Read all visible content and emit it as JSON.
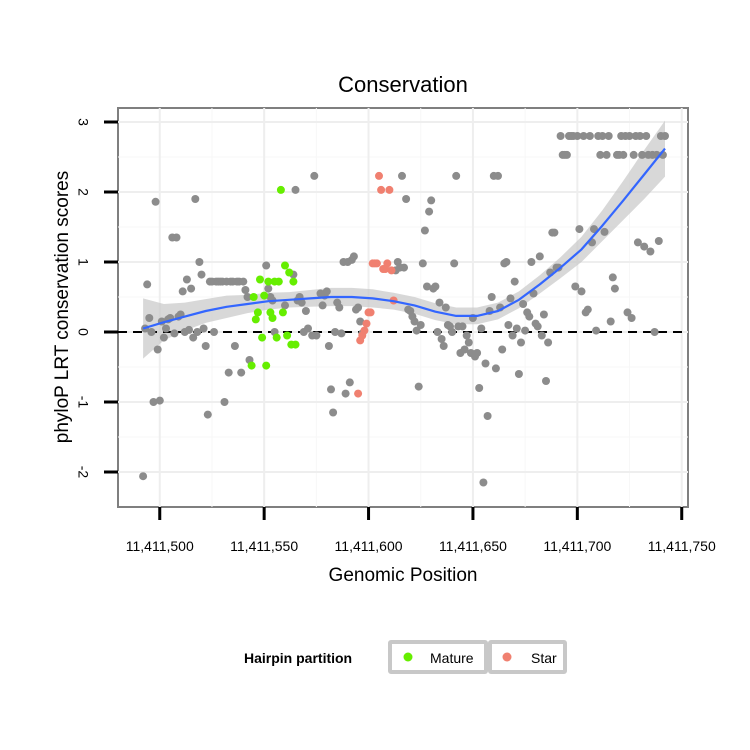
{
  "chart_data": {
    "type": "scatter",
    "title": "Conservation",
    "xlabel": "Genomic Position",
    "ylabel": "phyloP LRT conservation scores",
    "xlim": [
      11411480,
      11411753
    ],
    "ylim": [
      -2.5,
      3.2
    ],
    "x_ticks": [
      11411500,
      11411550,
      11411600,
      11411650,
      11411700,
      11411750
    ],
    "x_tick_labels": [
      "11,411,500",
      "11,411,550",
      "11,411,600",
      "11,411,650",
      "11,411,700",
      "11,411,750"
    ],
    "y_ticks": [
      -2,
      -1,
      0,
      1,
      2,
      3
    ],
    "y_tick_labels": [
      "-2",
      "-1",
      "0",
      "1",
      "2",
      "3"
    ],
    "reference_line": {
      "y": 0,
      "style": "dashed"
    },
    "legend": {
      "title": "Hairpin partition",
      "position": "bottom",
      "entries": [
        {
          "label": "Mature",
          "color": "#66ee00"
        },
        {
          "label": "Star",
          "color": "#f08070"
        }
      ]
    },
    "colors": {
      "other": "#8c8c8c",
      "Mature": "#66ee00",
      "Star": "#f08070",
      "smooth": "#3366ff",
      "band": "#c8c8c8"
    },
    "series": [
      {
        "name": "Other",
        "points": [
          [
            11411492,
            -2.06
          ],
          [
            11411493,
            0.05
          ],
          [
            11411494,
            0.68
          ],
          [
            11411495,
            0.2
          ],
          [
            11411496,
            0.0
          ],
          [
            11411497,
            -1.0
          ],
          [
            11411498,
            1.86
          ],
          [
            11411499,
            -0.25
          ],
          [
            11411500,
            -0.98
          ],
          [
            11411501,
            0.15
          ],
          [
            11411502,
            -0.08
          ],
          [
            11411503,
            0.05
          ],
          [
            11411504,
            0.18
          ],
          [
            11411505,
            0.2
          ],
          [
            11411506,
            1.35
          ],
          [
            11411507,
            -0.02
          ],
          [
            11411508,
            1.35
          ],
          [
            11411509,
            0.22
          ],
          [
            11411510,
            0.25
          ],
          [
            11411511,
            0.58
          ],
          [
            11411512,
            0.0
          ],
          [
            11411513,
            0.75
          ],
          [
            11411514,
            0.03
          ],
          [
            11411515,
            0.62
          ],
          [
            11411516,
            -0.08
          ],
          [
            11411517,
            1.9
          ],
          [
            11411518,
            0.0
          ],
          [
            11411519,
            1.0
          ],
          [
            11411520,
            0.82
          ],
          [
            11411521,
            0.05
          ],
          [
            11411522,
            -0.2
          ],
          [
            11411523,
            -1.18
          ],
          [
            11411524,
            0.72
          ],
          [
            11411525,
            0.72
          ],
          [
            11411526,
            0.0
          ],
          [
            11411527,
            0.72
          ],
          [
            11411528,
            0.72
          ],
          [
            11411529,
            0.72
          ],
          [
            11411530,
            0.72
          ],
          [
            11411531,
            -1.0
          ],
          [
            11411532,
            0.72
          ],
          [
            11411533,
            -0.58
          ],
          [
            11411534,
            0.72
          ],
          [
            11411535,
            0.72
          ],
          [
            11411536,
            -0.2
          ],
          [
            11411537,
            0.72
          ],
          [
            11411538,
            0.72
          ],
          [
            11411539,
            -0.58
          ],
          [
            11411540,
            0.72
          ],
          [
            11411541,
            0.6
          ],
          [
            11411542,
            0.5
          ],
          [
            11411543,
            -0.4
          ],
          [
            11411551,
            0.95
          ],
          [
            11411552,
            0.62
          ],
          [
            11411553,
            0.5
          ],
          [
            11411554,
            0.45
          ],
          [
            11411555,
            0.0
          ],
          [
            11411560,
            0.38
          ],
          [
            11411564,
            0.82
          ],
          [
            11411565,
            2.03
          ],
          [
            11411566,
            0.45
          ],
          [
            11411567,
            0.5
          ],
          [
            11411568,
            0.42
          ],
          [
            11411569,
            0.0
          ],
          [
            11411570,
            0.3
          ],
          [
            11411571,
            0.05
          ],
          [
            11411573,
            -0.05
          ],
          [
            11411574,
            2.23
          ],
          [
            11411575,
            -0.05
          ],
          [
            11411577,
            0.55
          ],
          [
            11411578,
            0.38
          ],
          [
            11411579,
            0.52
          ],
          [
            11411580,
            0.58
          ],
          [
            11411581,
            -0.2
          ],
          [
            11411582,
            -0.82
          ],
          [
            11411583,
            -1.15
          ],
          [
            11411584,
            0.0
          ],
          [
            11411585,
            0.42
          ],
          [
            11411586,
            0.35
          ],
          [
            11411587,
            -0.02
          ],
          [
            11411588,
            1.0
          ],
          [
            11411589,
            -0.88
          ],
          [
            11411590,
            1.0
          ],
          [
            11411591,
            -0.72
          ],
          [
            11411592,
            1.03
          ],
          [
            11411593,
            1.08
          ],
          [
            11411594,
            0.32
          ],
          [
            11411595,
            0.35
          ],
          [
            11411596,
            0.15
          ],
          [
            11411597,
            -0.02
          ],
          [
            11411613,
            0.88
          ],
          [
            11411614,
            1.0
          ],
          [
            11411615,
            0.92
          ],
          [
            11411616,
            2.23
          ],
          [
            11411617,
            0.92
          ],
          [
            11411618,
            1.9
          ],
          [
            11411619,
            0.32
          ],
          [
            11411620,
            0.3
          ],
          [
            11411621,
            0.22
          ],
          [
            11411622,
            0.15
          ],
          [
            11411623,
            0.02
          ],
          [
            11411624,
            -0.78
          ],
          [
            11411625,
            0.1
          ],
          [
            11411626,
            0.98
          ],
          [
            11411627,
            1.45
          ],
          [
            11411628,
            0.65
          ],
          [
            11411629,
            1.72
          ],
          [
            11411630,
            1.88
          ],
          [
            11411631,
            0.62
          ],
          [
            11411632,
            0.65
          ],
          [
            11411633,
            0.0
          ],
          [
            11411634,
            0.42
          ],
          [
            11411635,
            -0.1
          ],
          [
            11411636,
            -0.2
          ],
          [
            11411637,
            0.35
          ],
          [
            11411638,
            0.1
          ],
          [
            11411639,
            0.08
          ],
          [
            11411640,
            0.0
          ],
          [
            11411641,
            0.98
          ],
          [
            11411642,
            2.23
          ],
          [
            11411643,
            0.08
          ],
          [
            11411644,
            -0.3
          ],
          [
            11411645,
            0.08
          ],
          [
            11411646,
            -0.25
          ],
          [
            11411647,
            -0.05
          ],
          [
            11411648,
            -0.15
          ],
          [
            11411649,
            -0.3
          ],
          [
            11411650,
            0.2
          ],
          [
            11411651,
            -0.35
          ],
          [
            11411652,
            -0.3
          ],
          [
            11411653,
            -0.8
          ],
          [
            11411654,
            0.05
          ],
          [
            11411655,
            -2.15
          ],
          [
            11411656,
            -0.45
          ],
          [
            11411657,
            -1.2
          ],
          [
            11411658,
            0.3
          ],
          [
            11411659,
            0.5
          ],
          [
            11411660,
            2.23
          ],
          [
            11411661,
            -0.52
          ],
          [
            11411662,
            2.23
          ],
          [
            11411663,
            0.35
          ],
          [
            11411664,
            -0.25
          ],
          [
            11411665,
            0.98
          ],
          [
            11411666,
            1.0
          ],
          [
            11411667,
            0.1
          ],
          [
            11411668,
            0.48
          ],
          [
            11411669,
            -0.05
          ],
          [
            11411670,
            0.72
          ],
          [
            11411671,
            0.05
          ],
          [
            11411672,
            -0.6
          ],
          [
            11411673,
            -0.15
          ],
          [
            11411674,
            0.4
          ],
          [
            11411675,
            0.02
          ],
          [
            11411676,
            0.28
          ],
          [
            11411677,
            0.22
          ],
          [
            11411678,
            1.0
          ],
          [
            11411679,
            0.55
          ],
          [
            11411680,
            0.12
          ],
          [
            11411681,
            0.08
          ],
          [
            11411682,
            1.08
          ],
          [
            11411683,
            -0.05
          ],
          [
            11411684,
            0.25
          ],
          [
            11411685,
            -0.7
          ],
          [
            11411686,
            -0.15
          ],
          [
            11411687,
            0.85
          ],
          [
            11411688,
            1.42
          ],
          [
            11411689,
            1.42
          ],
          [
            11411690,
            0.92
          ],
          [
            11411691,
            0.92
          ],
          [
            11411692,
            2.8
          ],
          [
            11411693,
            2.53
          ],
          [
            11411694,
            2.53
          ],
          [
            11411695,
            2.53
          ],
          [
            11411696,
            2.8
          ],
          [
            11411697,
            2.8
          ],
          [
            11411698,
            2.8
          ],
          [
            11411699,
            0.65
          ],
          [
            11411700,
            2.8
          ],
          [
            11411701,
            1.47
          ],
          [
            11411702,
            0.58
          ],
          [
            11411703,
            2.8
          ],
          [
            11411704,
            0.28
          ],
          [
            11411705,
            0.32
          ],
          [
            11411706,
            2.8
          ],
          [
            11411707,
            1.28
          ],
          [
            11411708,
            1.47
          ],
          [
            11411709,
            0.02
          ],
          [
            11411710,
            2.8
          ],
          [
            11411711,
            2.53
          ],
          [
            11411712,
            2.8
          ],
          [
            11411713,
            1.43
          ],
          [
            11411714,
            2.53
          ],
          [
            11411715,
            2.8
          ],
          [
            11411716,
            0.15
          ],
          [
            11411717,
            0.78
          ],
          [
            11411718,
            0.62
          ],
          [
            11411719,
            2.53
          ],
          [
            11411720,
            2.53
          ],
          [
            11411721,
            2.8
          ],
          [
            11411722,
            2.53
          ],
          [
            11411723,
            2.8
          ],
          [
            11411724,
            0.28
          ],
          [
            11411725,
            2.8
          ],
          [
            11411726,
            0.2
          ],
          [
            11411727,
            2.53
          ],
          [
            11411728,
            2.8
          ],
          [
            11411729,
            1.28
          ],
          [
            11411730,
            2.8
          ],
          [
            11411731,
            2.53
          ],
          [
            11411732,
            1.22
          ],
          [
            11411733,
            2.8
          ],
          [
            11411734,
            2.53
          ],
          [
            11411735,
            1.15
          ],
          [
            11411736,
            2.53
          ],
          [
            11411737,
            0.0
          ],
          [
            11411738,
            2.53
          ],
          [
            11411739,
            1.3
          ],
          [
            11411740,
            2.8
          ],
          [
            11411741,
            2.53
          ],
          [
            11411742,
            2.8
          ]
        ]
      },
      {
        "name": "Mature",
        "points": [
          [
            11411544,
            -0.48
          ],
          [
            11411545,
            0.5
          ],
          [
            11411546,
            0.18
          ],
          [
            11411547,
            0.28
          ],
          [
            11411548,
            0.75
          ],
          [
            11411549,
            -0.08
          ],
          [
            11411550,
            0.52
          ],
          [
            11411551,
            -0.48
          ],
          [
            11411552,
            0.72
          ],
          [
            11411553,
            0.28
          ],
          [
            11411554,
            0.2
          ],
          [
            11411555,
            0.72
          ],
          [
            11411556,
            -0.08
          ],
          [
            11411557,
            0.72
          ],
          [
            11411558,
            2.03
          ],
          [
            11411559,
            0.28
          ],
          [
            11411560,
            0.95
          ],
          [
            11411561,
            -0.05
          ],
          [
            11411562,
            0.85
          ],
          [
            11411563,
            -0.18
          ],
          [
            11411564,
            0.72
          ],
          [
            11411565,
            -0.18
          ]
        ]
      },
      {
        "name": "Star",
        "points": [
          [
            11411595,
            -0.88
          ],
          [
            11411596,
            -0.12
          ],
          [
            11411597,
            -0.05
          ],
          [
            11411598,
            0.02
          ],
          [
            11411599,
            0.12
          ],
          [
            11411600,
            0.28
          ],
          [
            11411601,
            0.28
          ],
          [
            11411602,
            0.98
          ],
          [
            11411603,
            0.98
          ],
          [
            11411604,
            0.98
          ],
          [
            11411605,
            2.23
          ],
          [
            11411606,
            2.03
          ],
          [
            11411607,
            0.9
          ],
          [
            11411608,
            0.9
          ],
          [
            11411609,
            0.98
          ],
          [
            11411610,
            2.03
          ],
          [
            11411611,
            0.88
          ],
          [
            11411612,
            0.45
          ]
        ]
      }
    ],
    "smooth": {
      "method": "loess",
      "x": [
        11411492,
        11411502,
        11411512,
        11411522,
        11411532,
        11411542,
        11411552,
        11411562,
        11411572,
        11411582,
        11411592,
        11411602,
        11411612,
        11411622,
        11411632,
        11411642,
        11411652,
        11411662,
        11411672,
        11411682,
        11411692,
        11411702,
        11411712,
        11411722,
        11411732,
        11411742
      ],
      "y": [
        0.05,
        0.14,
        0.22,
        0.3,
        0.36,
        0.4,
        0.44,
        0.46,
        0.48,
        0.5,
        0.5,
        0.48,
        0.44,
        0.38,
        0.29,
        0.23,
        0.23,
        0.3,
        0.46,
        0.68,
        0.92,
        1.18,
        1.52,
        1.88,
        2.25,
        2.62
      ],
      "ci_low": [
        -0.38,
        -0.12,
        0.02,
        0.13,
        0.2,
        0.27,
        0.32,
        0.35,
        0.36,
        0.37,
        0.37,
        0.35,
        0.32,
        0.26,
        0.17,
        0.11,
        0.11,
        0.18,
        0.34,
        0.55,
        0.77,
        1.0,
        1.3,
        1.6,
        1.9,
        2.22
      ],
      "ci_high": [
        0.48,
        0.4,
        0.42,
        0.47,
        0.52,
        0.53,
        0.56,
        0.57,
        0.6,
        0.63,
        0.63,
        0.61,
        0.56,
        0.5,
        0.41,
        0.35,
        0.35,
        0.42,
        0.58,
        0.81,
        1.07,
        1.36,
        1.74,
        2.16,
        2.6,
        3.02
      ]
    }
  }
}
